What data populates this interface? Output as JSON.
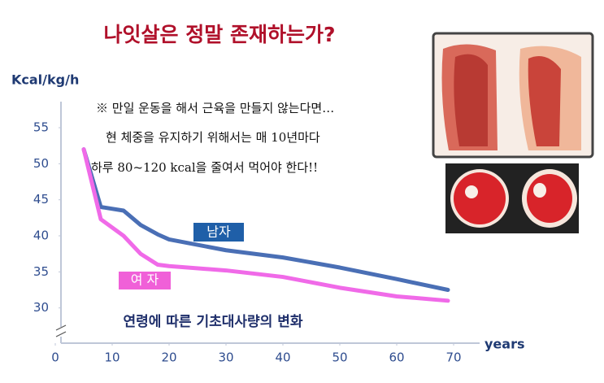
{
  "chart_data": {
    "type": "line",
    "title": "나잇살은 정말 존재하는가?",
    "y_label": "Kcal/kg/h",
    "x_label": "years",
    "caption": "연령에 따른 기초대사량의 변화",
    "annotations": [
      "※ 만일 운동을 해서 근육을 만들지 않는다면…",
      "현 체중을 유지하기 위해서는 매 10년마다",
      "하루 80~120 kcal을 줄여서 먹어야 한다!!"
    ],
    "x": [
      5,
      8,
      12,
      15,
      18,
      20,
      30,
      40,
      50,
      60,
      69
    ],
    "series": [
      {
        "name": "남자",
        "color": "#4a6fb5",
        "values": [
          52,
          44,
          43.5,
          41.5,
          40.2,
          39.5,
          38,
          37,
          35.6,
          34,
          32.5
        ]
      },
      {
        "name": "여 자",
        "color": "#f06ae8",
        "values": [
          52,
          42.3,
          40,
          37.5,
          36,
          35.8,
          35.2,
          34.3,
          32.8,
          31.6,
          31
        ]
      }
    ],
    "xlim": [
      0,
      75
    ],
    "xticks": [
      0,
      10,
      20,
      30,
      40,
      50,
      60,
      70
    ],
    "ylim": [
      25,
      58.5
    ],
    "yticks": [
      30,
      35,
      40,
      45,
      50,
      55
    ]
  }
}
